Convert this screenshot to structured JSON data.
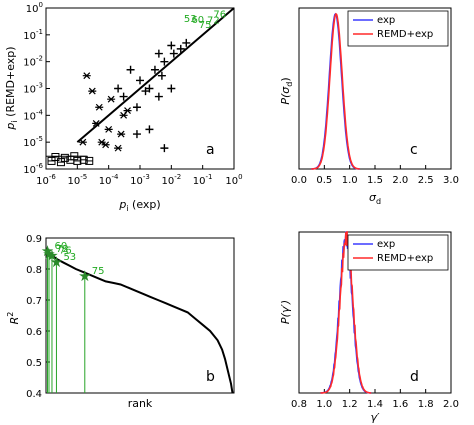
{
  "colors": {
    "exp": "#3b3bff",
    "remd_exp": "#ff2a2a",
    "highlight": "#27a327",
    "axis": "#000000"
  },
  "chart_data": [
    {
      "id": "a",
      "type": "scatter",
      "panel_letter": "a",
      "xlabel": "p_i (exp)",
      "ylabel": "p_i (REMD+exp)",
      "xlim": [
        1e-06,
        1
      ],
      "ylim": [
        1e-06,
        1
      ],
      "xscale": "log",
      "yscale": "log",
      "x_tick_labels": [
        "10-6",
        "10-5",
        "10-4",
        "10-3",
        "10-2",
        "10-1",
        "100"
      ],
      "y_tick_labels": [
        "10-6",
        "10-5",
        "10-4",
        "10-3",
        "10-2",
        "10-1",
        "100"
      ],
      "cross_points": [
        [
          0.012,
          0.02
        ],
        [
          0.03,
          0.05
        ],
        [
          0.005,
          0.003
        ],
        [
          0.002,
          0.001
        ],
        [
          0.001,
          0.002
        ],
        [
          0.006,
          0.01
        ],
        [
          0.0008,
          0.0002
        ],
        [
          0.0003,
          0.0005
        ],
        [
          0.0002,
          0.001
        ],
        [
          0.01,
          0.001
        ],
        [
          0.0015,
          0.0008
        ],
        [
          0.004,
          0.0005
        ],
        [
          0.002,
          3e-05
        ],
        [
          0.006,
          6e-06
        ],
        [
          0.0008,
          2e-05
        ],
        [
          0.0005,
          0.005
        ],
        [
          0.02,
          0.03
        ],
        [
          0.01,
          0.04
        ],
        [
          0.004,
          0.02
        ],
        [
          0.003,
          0.005
        ]
      ],
      "star_points": [
        [
          2e-05,
          0.003
        ],
        [
          4e-05,
          5e-05
        ],
        [
          6e-05,
          1e-05
        ],
        [
          0.0001,
          3e-05
        ],
        [
          0.0002,
          6e-06
        ],
        [
          0.0003,
          0.0001
        ],
        [
          5e-05,
          0.0002
        ],
        [
          1.5e-05,
          1e-05
        ],
        [
          8e-05,
          8e-06
        ],
        [
          0.00012,
          0.0004
        ],
        [
          3e-05,
          0.0008
        ],
        [
          0.00025,
          2e-05
        ],
        [
          0.0004,
          0.00015
        ]
      ],
      "square_points": [
        [
          1.5e-06,
          2e-06
        ],
        [
          3e-06,
          1.8e-06
        ],
        [
          6e-06,
          2.2e-06
        ],
        [
          1e-05,
          2e-06
        ],
        [
          1.6e-05,
          2.2e-06
        ],
        [
          2.4e-05,
          2e-06
        ],
        [
          2e-06,
          2.8e-06
        ],
        [
          4e-06,
          2.6e-06
        ],
        [
          8e-06,
          3e-06
        ]
      ],
      "fit_line": [
        [
          1e-05,
          1e-05
        ],
        [
          1,
          1
        ]
      ],
      "highlighted_labels": [
        {
          "label": "53",
          "x": 0.04,
          "y": 0.3
        },
        {
          "label": "60",
          "x": 0.07,
          "y": 0.28
        },
        {
          "label": "75",
          "x": 0.12,
          "y": 0.18
        },
        {
          "label": "72",
          "x": 0.22,
          "y": 0.26
        },
        {
          "label": "76",
          "x": 0.35,
          "y": 0.45
        }
      ]
    },
    {
      "id": "b",
      "type": "line",
      "panel_letter": "b",
      "xlabel": "rank",
      "ylabel": "R2",
      "ylim": [
        0.4,
        0.9
      ],
      "y_tick_labels": [
        "0.4",
        "0.5",
        "0.6",
        "0.7",
        "0.8",
        "0.9"
      ],
      "x": [
        1,
        3,
        5,
        8,
        12,
        16,
        20,
        25,
        30,
        35,
        40,
        45,
        50,
        55,
        60,
        65,
        70,
        75,
        80,
        85,
        90,
        95,
        100,
        105,
        110,
        115,
        118,
        120,
        122,
        124,
        125
      ],
      "y": [
        0.86,
        0.85,
        0.84,
        0.83,
        0.82,
        0.81,
        0.8,
        0.79,
        0.78,
        0.77,
        0.76,
        0.755,
        0.75,
        0.74,
        0.73,
        0.72,
        0.71,
        0.7,
        0.69,
        0.68,
        0.67,
        0.66,
        0.64,
        0.62,
        0.6,
        0.57,
        0.54,
        0.51,
        0.47,
        0.43,
        0.4
      ],
      "x_range": [
        0,
        126
      ],
      "highlighted": [
        {
          "label": "60",
          "rank": 1,
          "r2": 0.855
        },
        {
          "label": "72",
          "rank": 2,
          "r2": 0.845
        },
        {
          "label": "76",
          "rank": 4,
          "r2": 0.84
        },
        {
          "label": "53",
          "rank": 7,
          "r2": 0.82
        },
        {
          "label": "75",
          "rank": 26,
          "r2": 0.775
        }
      ]
    },
    {
      "id": "c",
      "type": "line",
      "panel_letter": "c",
      "xlabel": "σd",
      "ylabel": "P(σd)",
      "xlim": [
        0,
        3
      ],
      "x_tick_labels": [
        "0.0",
        "0.5",
        "1.0",
        "1.5",
        "2.0",
        "2.5",
        "3.0"
      ],
      "distribution": {
        "mean": 0.72,
        "sd": 0.12
      },
      "series": [
        {
          "name": "exp"
        },
        {
          "name": "REMD+exp"
        }
      ]
    },
    {
      "id": "d",
      "type": "line",
      "panel_letter": "d",
      "xlabel": "γ'",
      "ylabel": "P(γ')",
      "xlim": [
        0.8,
        2.0
      ],
      "x_tick_labels": [
        "0.8",
        "1.0",
        "1.2",
        "1.4",
        "1.6",
        "1.8",
        "2.0"
      ],
      "distribution": {
        "mean": 1.17,
        "sd": 0.05
      },
      "series": [
        {
          "name": "exp"
        },
        {
          "name": "REMD+exp"
        }
      ]
    }
  ]
}
